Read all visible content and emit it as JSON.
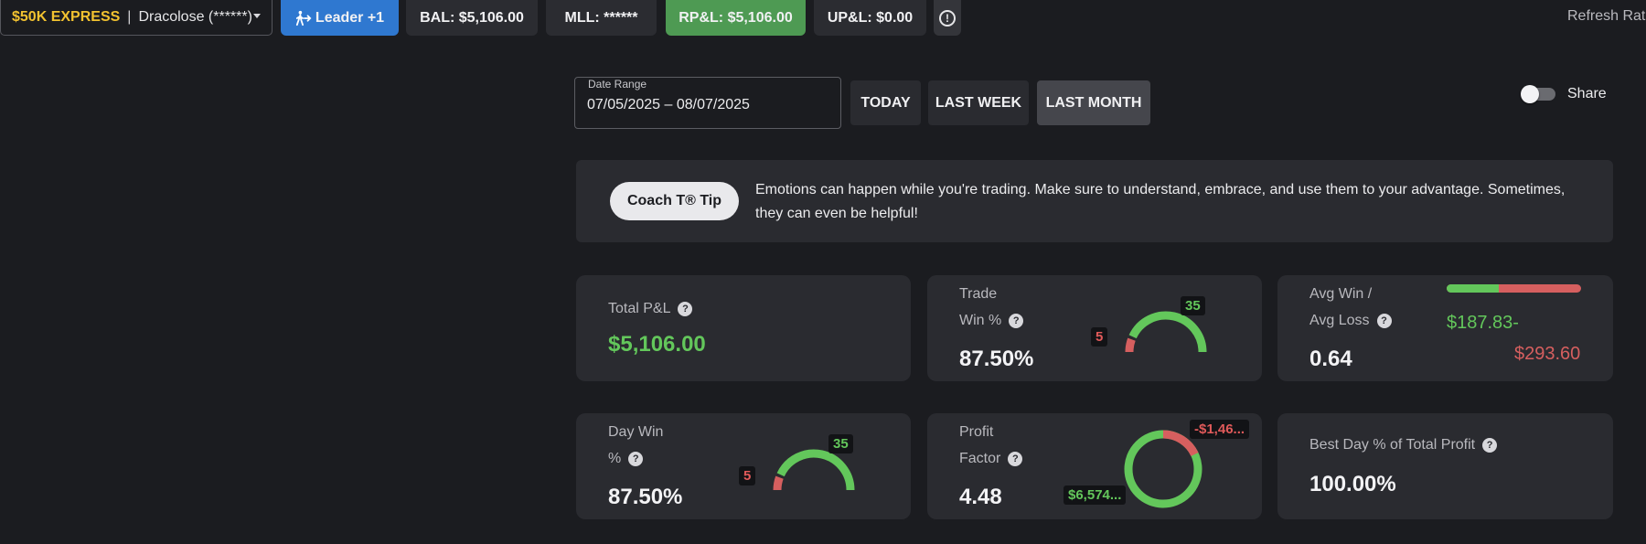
{
  "header": {
    "account": {
      "brand": "$50K EXPRESS",
      "separator": "|",
      "name": "Dracolose (******)"
    },
    "leader_label": "Leader +1",
    "bal_label": "BAL: $5,106.00",
    "mll_label": "MLL: ******",
    "rpl_label": "RP&L: $5,106.00",
    "upl_label": "UP&L: $0.00",
    "info_glyph": "!",
    "refresh_label": "Refresh Rate"
  },
  "date_range": {
    "label": "Date Range",
    "value": "07/05/2025 – 08/07/2025",
    "buttons": [
      "TODAY",
      "LAST WEEK",
      "LAST MONTH"
    ],
    "active": "LAST MONTH"
  },
  "share": {
    "label": "Share",
    "enabled": false
  },
  "coach_tip": {
    "button_label": "Coach T® Tip",
    "text": "Emotions can happen while you're trading. Make sure to understand, embrace, and use them to your advantage. Sometimes, they can even be helpful!"
  },
  "stats": {
    "total_pnl": {
      "label": "Total P&L",
      "value": "$5,106.00"
    },
    "trade_win": {
      "label_line1": "Trade",
      "label_line2": "Win %",
      "value": "87.50%",
      "wins": 35,
      "losses": 5,
      "wins_label": "35",
      "losses_label": "5"
    },
    "avg_win_loss": {
      "label_line1": "Avg Win /",
      "label_line2": "Avg Loss",
      "value": "0.64",
      "avg_win": "$187.83-",
      "avg_loss": "$293.60",
      "win_fraction": 0.39
    },
    "day_win": {
      "label_line1": "Day Win",
      "label_line2": "%",
      "value": "87.50%",
      "wins": 35,
      "losses": 5,
      "wins_label": "35",
      "losses_label": "5"
    },
    "profit_factor": {
      "label_line1": "Profit",
      "label_line2": "Factor",
      "value": "4.48",
      "gross_profit_label": "$6,574...",
      "gross_loss_label": "-$1,46...",
      "profit_fraction": 0.82
    },
    "best_day": {
      "label": "Best Day % of Total Profit",
      "value": "100.00%"
    }
  },
  "colors": {
    "green": "#63c75b",
    "red": "#d65f5f",
    "blue": "#2f78d0",
    "gold": "#f2c230"
  },
  "icons": {
    "leader": "person-walking-arrow-icon",
    "info": "exclamation-circle-icon",
    "help": "question-circle-icon"
  }
}
